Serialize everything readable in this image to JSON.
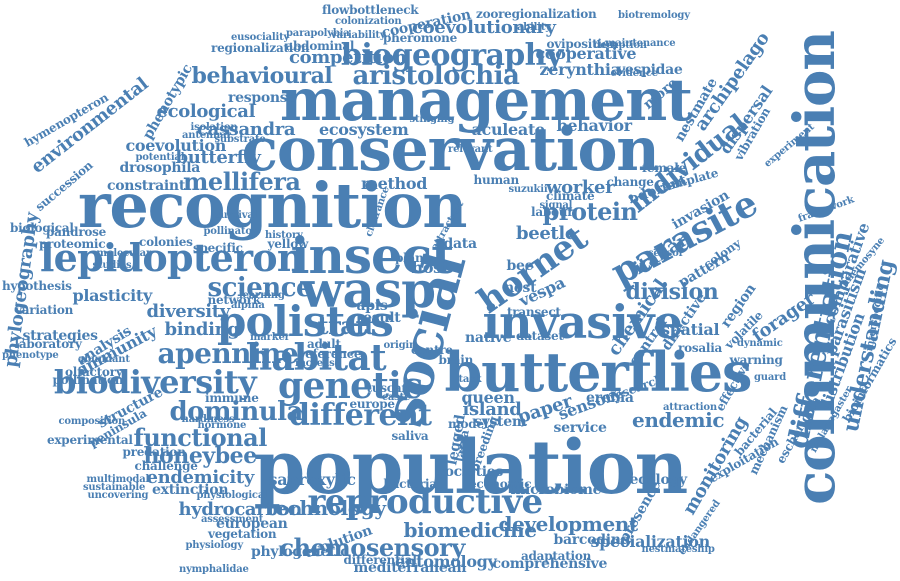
{
  "colors": {
    "word": "#4a7fb3",
    "background": "#ffffff"
  },
  "words": [
    "population",
    "conservation",
    "recognition",
    "management",
    "communication",
    "butterflies",
    "social",
    "invasive",
    "insect",
    "wasp",
    "polistes",
    "lepidopteron",
    "reproductive",
    "parasite",
    "hornet",
    "biodiversity",
    "genetic",
    "habitat",
    "biogeography",
    "different",
    "apennine",
    "science",
    "dominula",
    "protein",
    "mellifera",
    "aristolochia",
    "behavioural",
    "chemosensory",
    "functional",
    "honeybee",
    "individual",
    "differentiation",
    "biomedicine",
    "development",
    "hydrocarbon",
    "technology",
    "understanding",
    "saproxylic",
    "endemicity",
    "division",
    "italian",
    "competition",
    "coevolutionary",
    "cooperation",
    "cassandra",
    "ecosystem",
    "aculeate",
    "behavior",
    "coevolution",
    "drosophila",
    "butterfly",
    "constraint",
    "method",
    "worker",
    "sensory",
    "endemic",
    "paper",
    "island",
    "service",
    "beetle",
    "monitoring",
    "spatial",
    "pattern",
    "trait",
    "binding",
    "diversity",
    "immunity",
    "plasticity",
    "environmental",
    "phenotypic",
    "ecological",
    "response",
    "zerynthia",
    "vespidae",
    "cooperative",
    "oviposition",
    "pheromone",
    "regionalization",
    "abdominal",
    "zooregionalization",
    "archipelago",
    "dispersal",
    "nestmate",
    "vibration",
    "vespa",
    "forager",
    "evolution",
    "entomology",
    "comprehensive",
    "specialization",
    "barcoding",
    "mediterranean",
    "european",
    "vegetation",
    "assessment",
    "phylogenetic",
    "extinction",
    "challenge",
    "predation",
    "structure",
    "peninsula",
    "analysis",
    "strategies",
    "laboratory",
    "phylogeography",
    "colonies",
    "result",
    "plant",
    "data",
    "host",
    "nest",
    "bee",
    "presence",
    "ecology",
    "microbiome",
    "societies",
    "economic",
    "bacteria",
    "queen",
    "system",
    "model",
    "europe",
    "immune",
    "adult",
    "apis",
    "parasitism",
    "comparative",
    "distribution",
    "interspecific",
    "bioinformatics",
    "chemical",
    "control",
    "directive",
    "invasion",
    "odorant",
    "flowbottleneck",
    "colonization",
    "variability",
    "parapolybia",
    "eusociality",
    "biotremology",
    "maintenance",
    "deception",
    "evidence",
    "experiment",
    "framework",
    "template",
    "female",
    "change",
    "climate",
    "suzukii",
    "human",
    "labour",
    "signal",
    "olfactory",
    "pollination",
    "multimodal",
    "sustainable",
    "uncovering",
    "hymenopteron",
    "succession",
    "biological",
    "pandrose",
    "proteomic",
    "hypothesis",
    "variation",
    "phenotype",
    "experimental",
    "composition",
    "physiology",
    "nymphalidae",
    "differential",
    "adaptation",
    "nestmateship",
    "endangered",
    "exploitation",
    "bacterial",
    "mechanism",
    "escherichia",
    "melanogaster",
    "mnemosyne",
    "isolation",
    "antennal",
    "substrate",
    "potential",
    "marker",
    "hardiness",
    "hormone",
    "physiological",
    "network",
    "alpina",
    "yellow",
    "specific",
    "survival",
    "pollinator",
    "history",
    "learning",
    "abundant",
    "ability",
    "stinging",
    "relevant",
    "studies",
    "molecular",
    "clearance",
    "reference",
    "increase",
    "tuscan",
    "caste",
    "origin",
    "centre",
    "brain",
    "native",
    "task",
    "saliva",
    "legged",
    "larva",
    "breeding",
    "research",
    "rosalia",
    "attraction",
    "effective",
    "dynamic",
    "warning",
    "volatile",
    "region",
    "colony",
    "guard",
    "sensor",
    "attractant",
    "erebia",
    "transect",
    "dataset",
    "more",
    "most",
    "dispersal"
  ]
}
